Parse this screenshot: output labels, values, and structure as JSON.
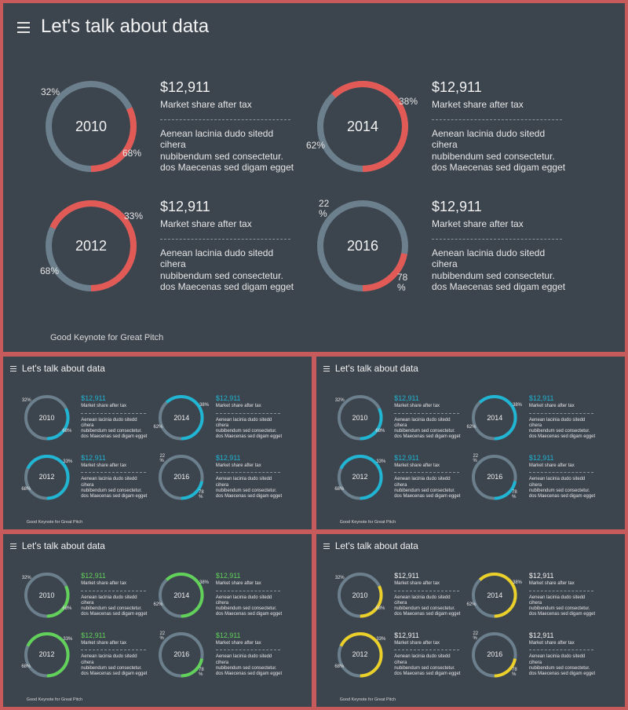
{
  "title": "Let's talk about data",
  "footer": "Good Keynote for Great Pitch",
  "icons": {
    "menu": "hamburger-menu-icon"
  },
  "colors": {
    "track": "#6c7f8c",
    "background": "#3c444e",
    "page_border": "#c75a5a"
  },
  "slides": [
    {
      "id": "main",
      "accent": "#e25a55",
      "amount_accent": false
    },
    {
      "id": "blue",
      "accent": "#1fb5d3",
      "amount_accent": true
    },
    {
      "id": "blue-copy",
      "accent": "#1fb5d3",
      "amount_accent": true
    },
    {
      "id": "green",
      "accent": "#61d15a",
      "amount_accent": true
    },
    {
      "id": "yellow",
      "accent": "#ecd02a",
      "amount_accent": false
    }
  ],
  "items": [
    {
      "year": "2010",
      "highlight": 32,
      "label_a": "32%",
      "label_b": "68%",
      "amount": "$12,911",
      "subtitle": "Market share after tax",
      "desc": [
        "Aenean lacinia  dudo  sitedd",
        "cihera",
        "nubibendum sed consectetur.",
        "dos Maecenas sed digam egget"
      ]
    },
    {
      "year": "2014",
      "highlight": 62,
      "label_a": "38%",
      "label_b": "62%",
      "amount": "$12,911",
      "subtitle": "Market share after tax",
      "desc": [
        "Aenean lacinia  dudo  sitedd",
        "cihera",
        "nubibendum sed consectetur.",
        "dos Maecenas sed digam egget"
      ]
    },
    {
      "year": "2012",
      "highlight": 68,
      "label_a": "33%",
      "label_b": "68%",
      "amount": "$12,911",
      "subtitle": "Market share after tax",
      "desc": [
        "Aenean lacinia  dudo  sitedd",
        "cihera",
        "nubibendum sed consectetur.",
        "dos Maecenas sed digam egget"
      ]
    },
    {
      "year": "2016",
      "highlight": 22,
      "label_a": "22\n%",
      "label_b": "78\n%",
      "amount": "$12,911",
      "subtitle": "Market share after tax",
      "desc": [
        "Aenean lacinia  dudo  sitedd",
        "cihera",
        "nubibendum sed consectetur.",
        "dos Maecenas sed digam egget"
      ]
    }
  ]
}
